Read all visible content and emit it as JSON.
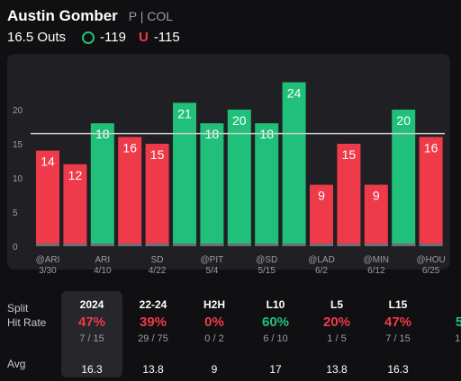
{
  "header": {
    "player_name": "Austin Gomber",
    "player_meta": "P | COL",
    "line_value": "16.5 Outs",
    "over_odds": "-119",
    "under_odds": "-115",
    "over_icon": "circle-o-icon",
    "under_icon": "u-icon",
    "under_letter": "U"
  },
  "colors": {
    "over": "#21c07a",
    "under": "#ef3a4a",
    "background": "#101012",
    "card": "#202024"
  },
  "chart_data": {
    "type": "bar",
    "line": 16.5,
    "ylim": [
      0,
      26
    ],
    "yticks": [
      "0",
      "5",
      "10",
      "15",
      "20"
    ],
    "bars": [
      {
        "value": 14,
        "label": "14",
        "result": "under",
        "opp": "@ARI",
        "date": "3/30"
      },
      {
        "value": 12,
        "label": "12",
        "result": "under",
        "opp": "",
        "date": ""
      },
      {
        "value": 18,
        "label": "18",
        "result": "over",
        "opp": "ARI",
        "date": "4/10"
      },
      {
        "value": 16,
        "label": "16",
        "result": "under",
        "opp": "",
        "date": ""
      },
      {
        "value": 15,
        "label": "15",
        "result": "under",
        "opp": "SD",
        "date": "4/22"
      },
      {
        "value": 21,
        "label": "21",
        "result": "over",
        "opp": "",
        "date": ""
      },
      {
        "value": 18,
        "label": "18",
        "result": "over",
        "opp": "@PIT",
        "date": "5/4"
      },
      {
        "value": 20,
        "label": "20",
        "result": "over",
        "opp": "",
        "date": ""
      },
      {
        "value": 18,
        "label": "18",
        "result": "over",
        "opp": "@SD",
        "date": "5/15"
      },
      {
        "value": 24,
        "label": "24",
        "result": "over",
        "opp": "",
        "date": ""
      },
      {
        "value": 9,
        "label": "9",
        "result": "under",
        "opp": "@LAD",
        "date": "6/2"
      },
      {
        "value": 15,
        "label": "15",
        "result": "under",
        "opp": "",
        "date": ""
      },
      {
        "value": 9,
        "label": "9",
        "result": "under",
        "opp": "@MIN",
        "date": "6/12"
      },
      {
        "value": 20,
        "label": "20",
        "result": "over",
        "opp": "",
        "date": ""
      },
      {
        "value": 16,
        "label": "16",
        "result": "under",
        "opp": "@HOU",
        "date": "6/25"
      }
    ]
  },
  "splits": {
    "labels": {
      "split": "Split",
      "hit_rate": "Hit Rate",
      "avg": "Avg"
    },
    "columns": [
      {
        "title": "2024",
        "pct": "47%",
        "frac": "7 / 15",
        "avg": "16.3",
        "status": "under",
        "active": true
      },
      {
        "title": "22-24",
        "pct": "39%",
        "frac": "29 / 75",
        "avg": "13.8",
        "status": "under",
        "active": false
      },
      {
        "title": "H2H",
        "pct": "0%",
        "frac": "0 / 2",
        "avg": "9",
        "status": "under",
        "active": false
      },
      {
        "title": "L10",
        "pct": "60%",
        "frac": "6 / 10",
        "avg": "17",
        "status": "over",
        "active": false
      },
      {
        "title": "L5",
        "pct": "20%",
        "frac": "1 / 5",
        "avg": "13.8",
        "status": "under",
        "active": false
      },
      {
        "title": "L15",
        "pct": "47%",
        "frac": "7 / 15",
        "avg": "16.3",
        "status": "under",
        "active": false
      },
      {
        "title": "",
        "pct": "5",
        "frac": "1(",
        "avg": "",
        "status": "over",
        "active": false
      }
    ]
  }
}
